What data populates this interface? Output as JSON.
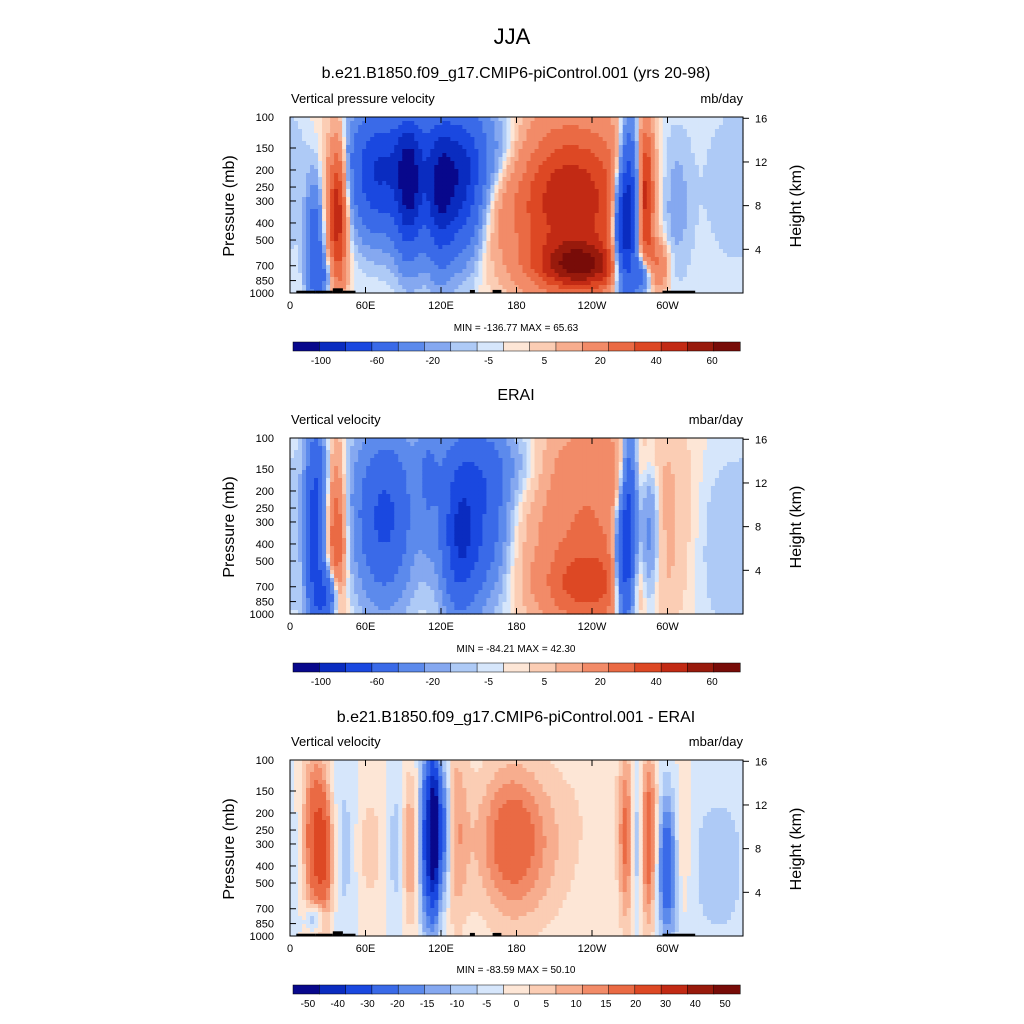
{
  "figure": {
    "main_title": "JJA"
  },
  "chart_data": [
    {
      "type": "heatmap",
      "title": "b.e21.B1850.f09_g17.CMIP6-piControl.001 (yrs 20-98)",
      "left_label": "Vertical pressure velocity",
      "units": "mb/day",
      "ylabel": "Pressure (mb)",
      "ylabel_right": "Height (km)",
      "x_ticks": [
        "0",
        "60E",
        "120E",
        "180",
        "120W",
        "60W"
      ],
      "x_tick_lon": [
        0,
        60,
        120,
        180,
        240,
        300
      ],
      "xlim": [
        0,
        360
      ],
      "y_ticks": [
        "100",
        "150",
        "200",
        "250",
        "300",
        "400",
        "500",
        "700",
        "850",
        "1000"
      ],
      "y_tick_values": [
        100,
        150,
        200,
        250,
        300,
        400,
        500,
        700,
        850,
        1000
      ],
      "ylim": [
        1000,
        100
      ],
      "y_scale": "log",
      "height_ticks": [
        "4",
        "8",
        "12",
        "16"
      ],
      "height_tick_values": [
        4,
        8,
        12,
        16
      ],
      "stats": "MIN = -136.77  MAX =  65.63",
      "min": -136.77,
      "max": 65.63,
      "colorbar": {
        "levels": [
          "-100",
          "-80",
          "-60",
          "-40",
          "-20",
          "-10",
          "-5",
          "-2",
          "2",
          "5",
          "10",
          "20",
          "30",
          "40",
          "50",
          "60"
        ],
        "labeled": [
          "-100",
          "-60",
          "-20",
          "-5",
          "5",
          "20",
          "40",
          "60"
        ]
      },
      "topography": true
    },
    {
      "type": "heatmap",
      "title": "ERAI",
      "left_label": "Vertical velocity",
      "units": "mbar/day",
      "ylabel": "Pressure (mb)",
      "ylabel_right": "Height (km)",
      "x_ticks": [
        "0",
        "60E",
        "120E",
        "180",
        "120W",
        "60W"
      ],
      "x_tick_lon": [
        0,
        60,
        120,
        180,
        240,
        300
      ],
      "xlim": [
        0,
        360
      ],
      "y_ticks": [
        "100",
        "150",
        "200",
        "250",
        "300",
        "400",
        "500",
        "700",
        "850",
        "1000"
      ],
      "y_tick_values": [
        100,
        150,
        200,
        250,
        300,
        400,
        500,
        700,
        850,
        1000
      ],
      "ylim": [
        1000,
        100
      ],
      "y_scale": "log",
      "height_ticks": [
        "4",
        "8",
        "12",
        "16"
      ],
      "height_tick_values": [
        4,
        8,
        12,
        16
      ],
      "stats": "MIN = -84.21  MAX =  42.30",
      "min": -84.21,
      "max": 42.3,
      "colorbar": {
        "levels": [
          "-100",
          "-80",
          "-60",
          "-40",
          "-20",
          "-10",
          "-5",
          "-2",
          "2",
          "5",
          "10",
          "20",
          "30",
          "40",
          "50",
          "60"
        ],
        "labeled": [
          "-100",
          "-60",
          "-20",
          "-5",
          "5",
          "20",
          "40",
          "60"
        ]
      },
      "topography": false
    },
    {
      "type": "heatmap",
      "title": "b.e21.B1850.f09_g17.CMIP6-piControl.001 - ERAI",
      "left_label": "Vertical velocity",
      "units": "mbar/day",
      "ylabel": "Pressure (mb)",
      "ylabel_right": "Height (km)",
      "x_ticks": [
        "0",
        "60E",
        "120E",
        "180",
        "120W",
        "60W"
      ],
      "x_tick_lon": [
        0,
        60,
        120,
        180,
        240,
        300
      ],
      "xlim": [
        0,
        360
      ],
      "y_ticks": [
        "100",
        "150",
        "200",
        "250",
        "300",
        "400",
        "500",
        "700",
        "850",
        "1000"
      ],
      "y_tick_values": [
        100,
        150,
        200,
        250,
        300,
        400,
        500,
        700,
        850,
        1000
      ],
      "ylim": [
        1000,
        100
      ],
      "y_scale": "log",
      "height_ticks": [
        "4",
        "8",
        "12",
        "16"
      ],
      "height_tick_values": [
        4,
        8,
        12,
        16
      ],
      "stats": "MIN = -83.59  MAX =  50.10",
      "min": -83.59,
      "max": 50.1,
      "colorbar": {
        "levels": [
          "-50",
          "-45",
          "-40",
          "-35",
          "-30",
          "-25",
          "-20",
          "-15",
          "-10",
          "-5",
          "0",
          "5",
          "10",
          "15",
          "20",
          "30",
          "40",
          "50"
        ],
        "labeled": [
          "-50",
          "-40",
          "-30",
          "-20",
          "-15",
          "-10",
          "-5",
          "0",
          "5",
          "10",
          "15",
          "20",
          "30",
          "40",
          "50"
        ]
      },
      "topography": true
    }
  ],
  "colors": {
    "neg": [
      "#08088c",
      "#0a2cc0",
      "#1a48e0",
      "#3a6ae8",
      "#5c8aec",
      "#85a8f0",
      "#aecaf6",
      "#d6e6fb"
    ],
    "pos": [
      "#fde6d6",
      "#fbcdb4",
      "#f7ad8e",
      "#f28b68",
      "#ea6a44",
      "#dd4824",
      "#c22a14",
      "#981a0c",
      "#780c08"
    ],
    "topography": "#000000"
  }
}
